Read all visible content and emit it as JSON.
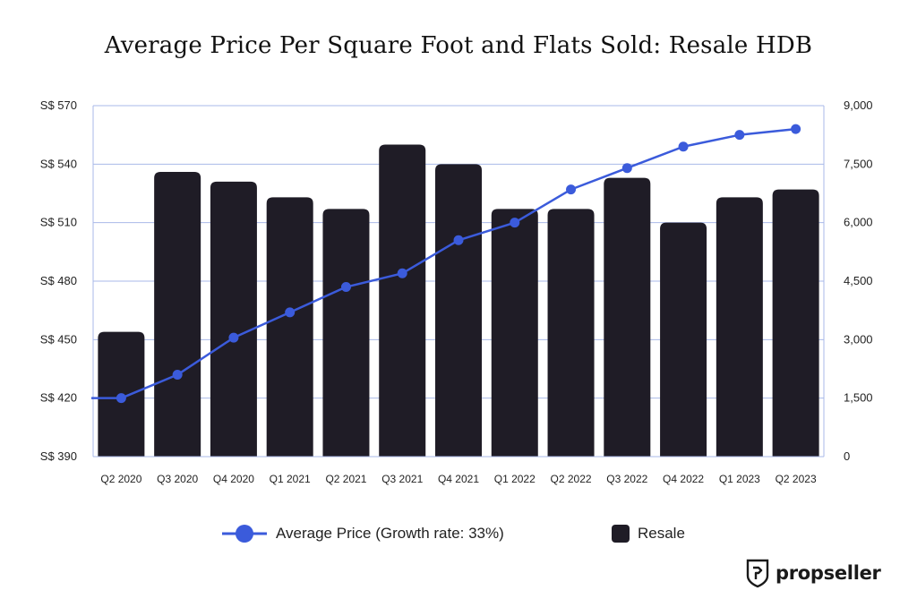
{
  "chart_data": {
    "type": "bar",
    "title": "Average Price Per Square Foot and Flats Sold: Resale HDB",
    "categories": [
      "Q2 2020",
      "Q3 2020",
      "Q4 2020",
      "Q1 2021",
      "Q2 2021",
      "Q3 2021",
      "Q4 2021",
      "Q1 2022",
      "Q2 2022",
      "Q3 2022",
      "Q4 2022",
      "Q1 2023",
      "Q2 2023"
    ],
    "series": [
      {
        "name": "Resale",
        "kind": "bar",
        "axis": "right",
        "color": "#1f1c26",
        "values": [
          3200,
          7300,
          7050,
          6650,
          6350,
          8000,
          7500,
          6350,
          6350,
          7150,
          6000,
          6650,
          6850
        ]
      },
      {
        "name": "Average Price (Growth rate: 33%)",
        "kind": "line",
        "axis": "left",
        "color": "#3b5bdb",
        "values": [
          420,
          432,
          451,
          464,
          477,
          484,
          501,
          510,
          527,
          538,
          549,
          555,
          558
        ]
      }
    ],
    "y_left": {
      "range": [
        390,
        570
      ],
      "ticks": [
        390,
        420,
        450,
        480,
        510,
        540,
        570
      ],
      "tick_labels": [
        "S$ 390",
        "S$ 420",
        "S$ 450",
        "S$ 480",
        "S$ 510",
        "S$ 540",
        "S$ 570"
      ]
    },
    "y_right": {
      "range": [
        0,
        9000
      ],
      "ticks": [
        0,
        1500,
        3000,
        4500,
        6000,
        7500,
        9000
      ],
      "tick_labels": [
        "0",
        "1,500",
        "3,000",
        "4,500",
        "6,000",
        "7,500",
        "9,000"
      ]
    },
    "grid": true,
    "legend_position": "bottom",
    "grid_color": "#a9b9e8"
  },
  "brand": {
    "name": "propseller",
    "logo_icon": "propseller-shield-icon"
  }
}
